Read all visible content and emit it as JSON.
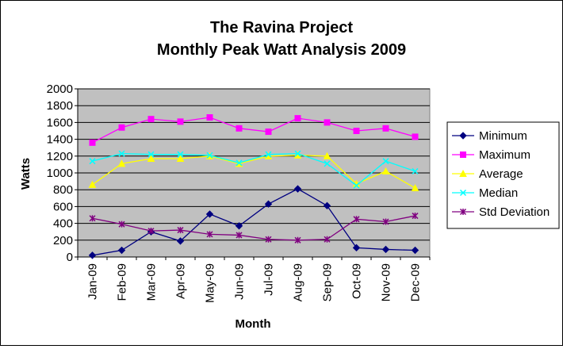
{
  "chart_data": {
    "type": "line",
    "title_line1": "The Ravina Project",
    "title_line2": "Monthly Peak Watt Analysis 2009",
    "xlabel": "Month",
    "ylabel": "Watts",
    "ylim": [
      0,
      2000
    ],
    "yticks": [
      "0",
      "200",
      "400",
      "600",
      "800",
      "1000",
      "1200",
      "1400",
      "1600",
      "1800",
      "2000"
    ],
    "categories": [
      "Jan-09",
      "Feb-09",
      "Mar-09",
      "Apr-09",
      "May-09",
      "Jun-09",
      "Jul-09",
      "Aug-09",
      "Sep-09",
      "Oct-09",
      "Nov-09",
      "Dec-09"
    ],
    "grid": true,
    "plot_background": "#C0C0C0",
    "legend_position": "right",
    "series": [
      {
        "name": "Minimum",
        "color": "#000080",
        "marker": "diamond",
        "values": [
          20,
          80,
          300,
          190,
          510,
          370,
          630,
          810,
          610,
          110,
          90,
          80
        ]
      },
      {
        "name": "Maximum",
        "color": "#FF00FF",
        "marker": "square",
        "values": [
          1360,
          1540,
          1640,
          1610,
          1660,
          1530,
          1490,
          1650,
          1600,
          1500,
          1530,
          1430
        ]
      },
      {
        "name": "Average",
        "color": "#FFFF00",
        "marker": "triangle",
        "values": [
          860,
          1110,
          1170,
          1170,
          1200,
          1110,
          1200,
          1210,
          1200,
          870,
          1020,
          820
        ]
      },
      {
        "name": "Median",
        "color": "#00FFFF",
        "marker": "x",
        "values": [
          1140,
          1230,
          1220,
          1220,
          1210,
          1120,
          1220,
          1230,
          1110,
          850,
          1140,
          1020
        ]
      },
      {
        "name": "Std Deviation",
        "color": "#800080",
        "marker": "star",
        "values": [
          460,
          390,
          310,
          320,
          270,
          260,
          210,
          200,
          210,
          450,
          420,
          490
        ]
      }
    ]
  }
}
